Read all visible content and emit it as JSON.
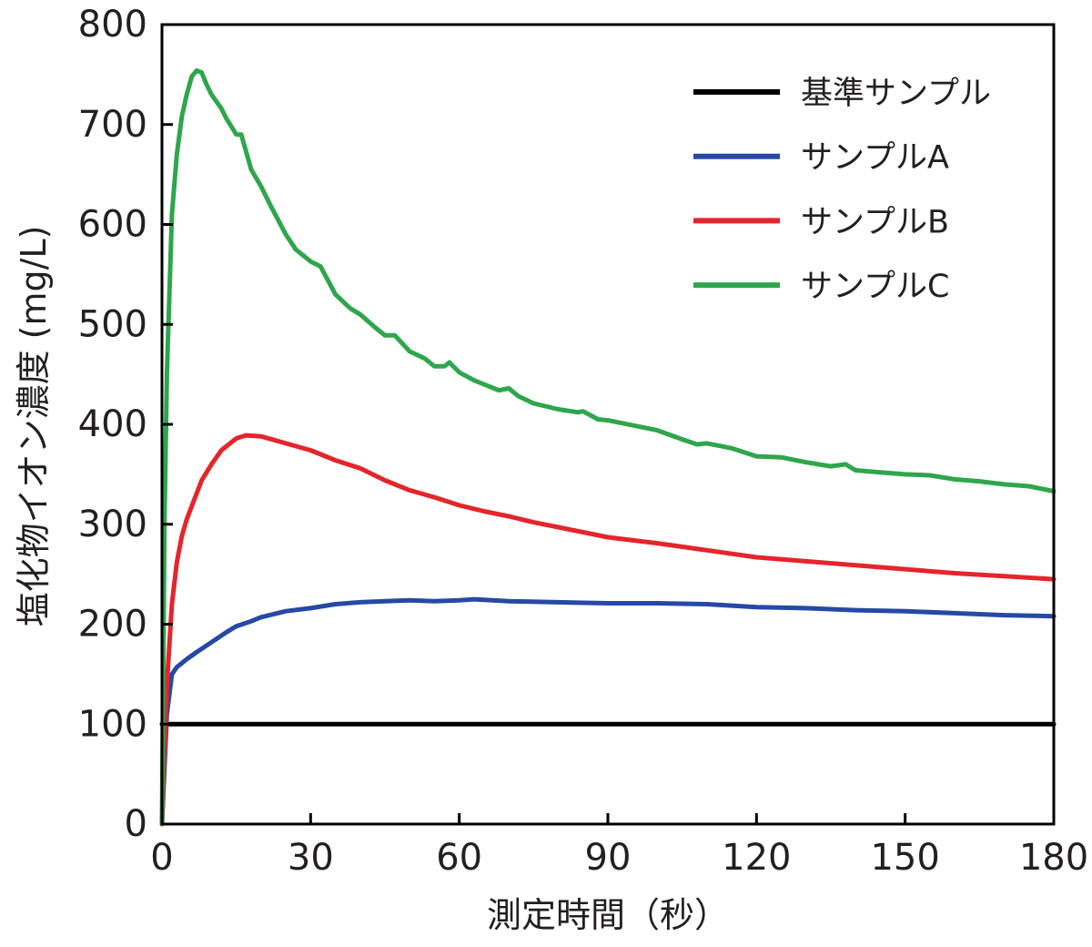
{
  "chart_data": {
    "type": "line",
    "xlabel": "測定時間（秒）",
    "ylabel": "塩化物イオン濃度 (mg/L)",
    "xlim": [
      0,
      180
    ],
    "ylim": [
      0,
      800
    ],
    "xticks": [
      0,
      30,
      60,
      90,
      120,
      150,
      180
    ],
    "yticks": [
      0,
      100,
      200,
      300,
      400,
      500,
      600,
      700,
      800
    ],
    "grid": false,
    "legend_position": "top-right",
    "series": [
      {
        "name": "基準サンプル",
        "color": "#000000",
        "x": [
          0,
          180
        ],
        "y": [
          100,
          100
        ]
      },
      {
        "name": "サンプルA",
        "color": "#2649a5",
        "x": [
          0,
          1,
          2,
          3,
          5,
          7,
          10,
          13,
          15,
          18,
          20,
          25,
          30,
          35,
          40,
          45,
          50,
          55,
          60,
          63,
          70,
          80,
          90,
          100,
          110,
          120,
          130,
          140,
          150,
          160,
          170,
          180
        ],
        "y": [
          0,
          110,
          150,
          157,
          165,
          172,
          182,
          192,
          198,
          203,
          207,
          213,
          216,
          220,
          222,
          223,
          224,
          223,
          224,
          225,
          223,
          222,
          221,
          221,
          220,
          217,
          216,
          214,
          213,
          211,
          209,
          208
        ]
      },
      {
        "name": "サンプルB",
        "color": "#e4252b",
        "x": [
          0,
          1,
          2,
          3,
          4,
          5,
          8,
          10,
          12,
          15,
          17,
          20,
          25,
          30,
          35,
          40,
          45,
          50,
          55,
          60,
          65,
          70,
          75,
          80,
          85,
          90,
          100,
          110,
          120,
          130,
          140,
          150,
          160,
          170,
          180
        ],
        "y": [
          0,
          140,
          220,
          262,
          288,
          305,
          344,
          360,
          374,
          386,
          389,
          388,
          381,
          374,
          364,
          356,
          344,
          334,
          327,
          319,
          313,
          308,
          302,
          297,
          292,
          287,
          281,
          274,
          267,
          263,
          259,
          255,
          251,
          248,
          245
        ]
      },
      {
        "name": "サンプルC",
        "color": "#2ea64c",
        "x": [
          0,
          0.5,
          1,
          2,
          3,
          4,
          5,
          6,
          7,
          8,
          9,
          10,
          12,
          13,
          15,
          16,
          18,
          20,
          22,
          25,
          27,
          30,
          32,
          35,
          38,
          40,
          43,
          45,
          47,
          50,
          53,
          55,
          57,
          58,
          60,
          63,
          65,
          68,
          70,
          72,
          75,
          80,
          84,
          85,
          88,
          90,
          95,
          100,
          105,
          108,
          110,
          113,
          115,
          120,
          125,
          130,
          135,
          138,
          140,
          145,
          150,
          155,
          160,
          165,
          170,
          175,
          180
        ],
        "y": [
          0,
          300,
          450,
          610,
          670,
          708,
          730,
          748,
          754,
          752,
          740,
          730,
          716,
          706,
          690,
          690,
          655,
          638,
          618,
          590,
          575,
          563,
          558,
          530,
          516,
          510,
          497,
          489,
          489,
          473,
          466,
          458,
          458,
          462,
          452,
          444,
          440,
          434,
          436,
          428,
          421,
          415,
          412,
          413,
          405,
          404,
          399,
          394,
          385,
          380,
          381,
          378,
          376,
          368,
          367,
          362,
          358,
          360,
          354,
          352,
          350,
          349,
          345,
          343,
          340,
          338,
          333
        ]
      }
    ]
  }
}
